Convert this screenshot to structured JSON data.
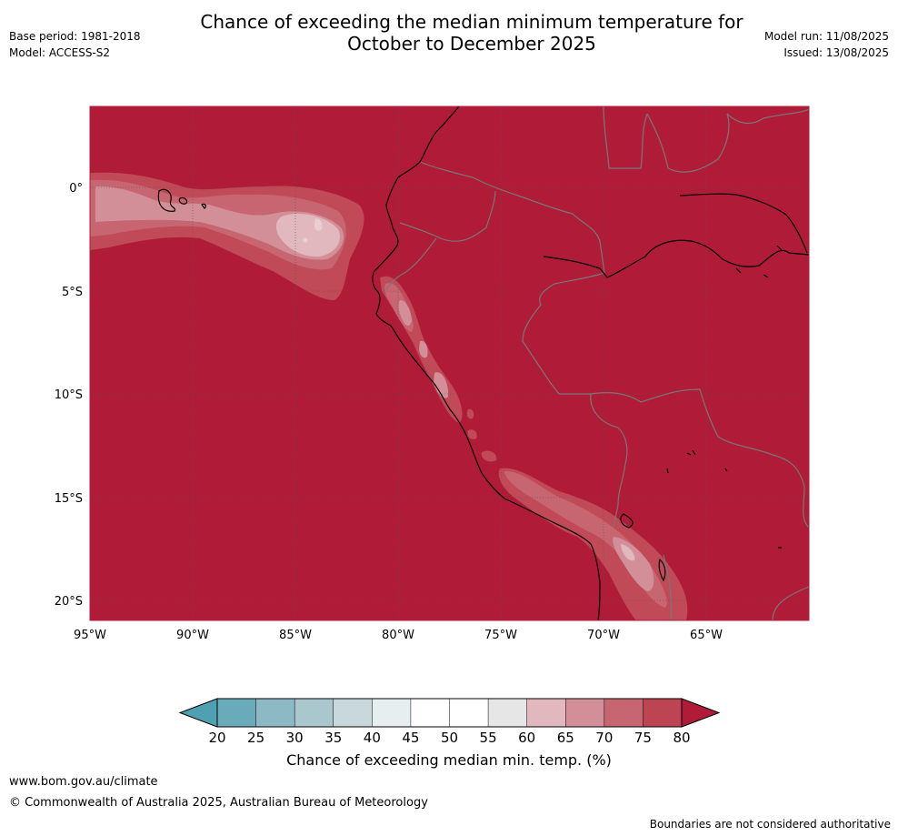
{
  "header": {
    "title_line1": "Chance of exceeding the median minimum temperature for",
    "title_line2": "October to December 2025",
    "base_period": "Base period: 1981-2018",
    "model": "Model: ACCESS-S2",
    "model_run": "Model run: 11/08/2025",
    "issued": "Issued: 13/08/2025"
  },
  "map": {
    "lat_labels": [
      "0°",
      "5°S",
      "10°S",
      "15°S",
      "20°S"
    ],
    "lon_labels": [
      "95°W",
      "90°W",
      "85°W",
      "80°W",
      "75°W",
      "70°W",
      "65°W"
    ],
    "background_color": "#b01c37"
  },
  "colorbar": {
    "ticks": [
      "20",
      "25",
      "30",
      "35",
      "40",
      "45",
      "50",
      "55",
      "60",
      "65",
      "70",
      "75",
      "80"
    ],
    "colors": [
      "#6aabb9",
      "#8db9c4",
      "#a9c7cd",
      "#c8d8dc",
      "#e7eef0",
      "#ffffff",
      "#ffffff",
      "#e6e6e6",
      "#e0b8be",
      "#d38f98",
      "#c76571",
      "#bd4453"
    ],
    "under_color": "#4fa0b0",
    "over_color": "#b01c37",
    "label": "Chance of exceeding median min. temp. (%)"
  },
  "footer": {
    "website": "www.bom.gov.au/climate",
    "copyright": "© Commonwealth of Australia 2025, Australian Bureau of Meteorology",
    "disclaimer": "Boundaries are not considered authoritative"
  }
}
